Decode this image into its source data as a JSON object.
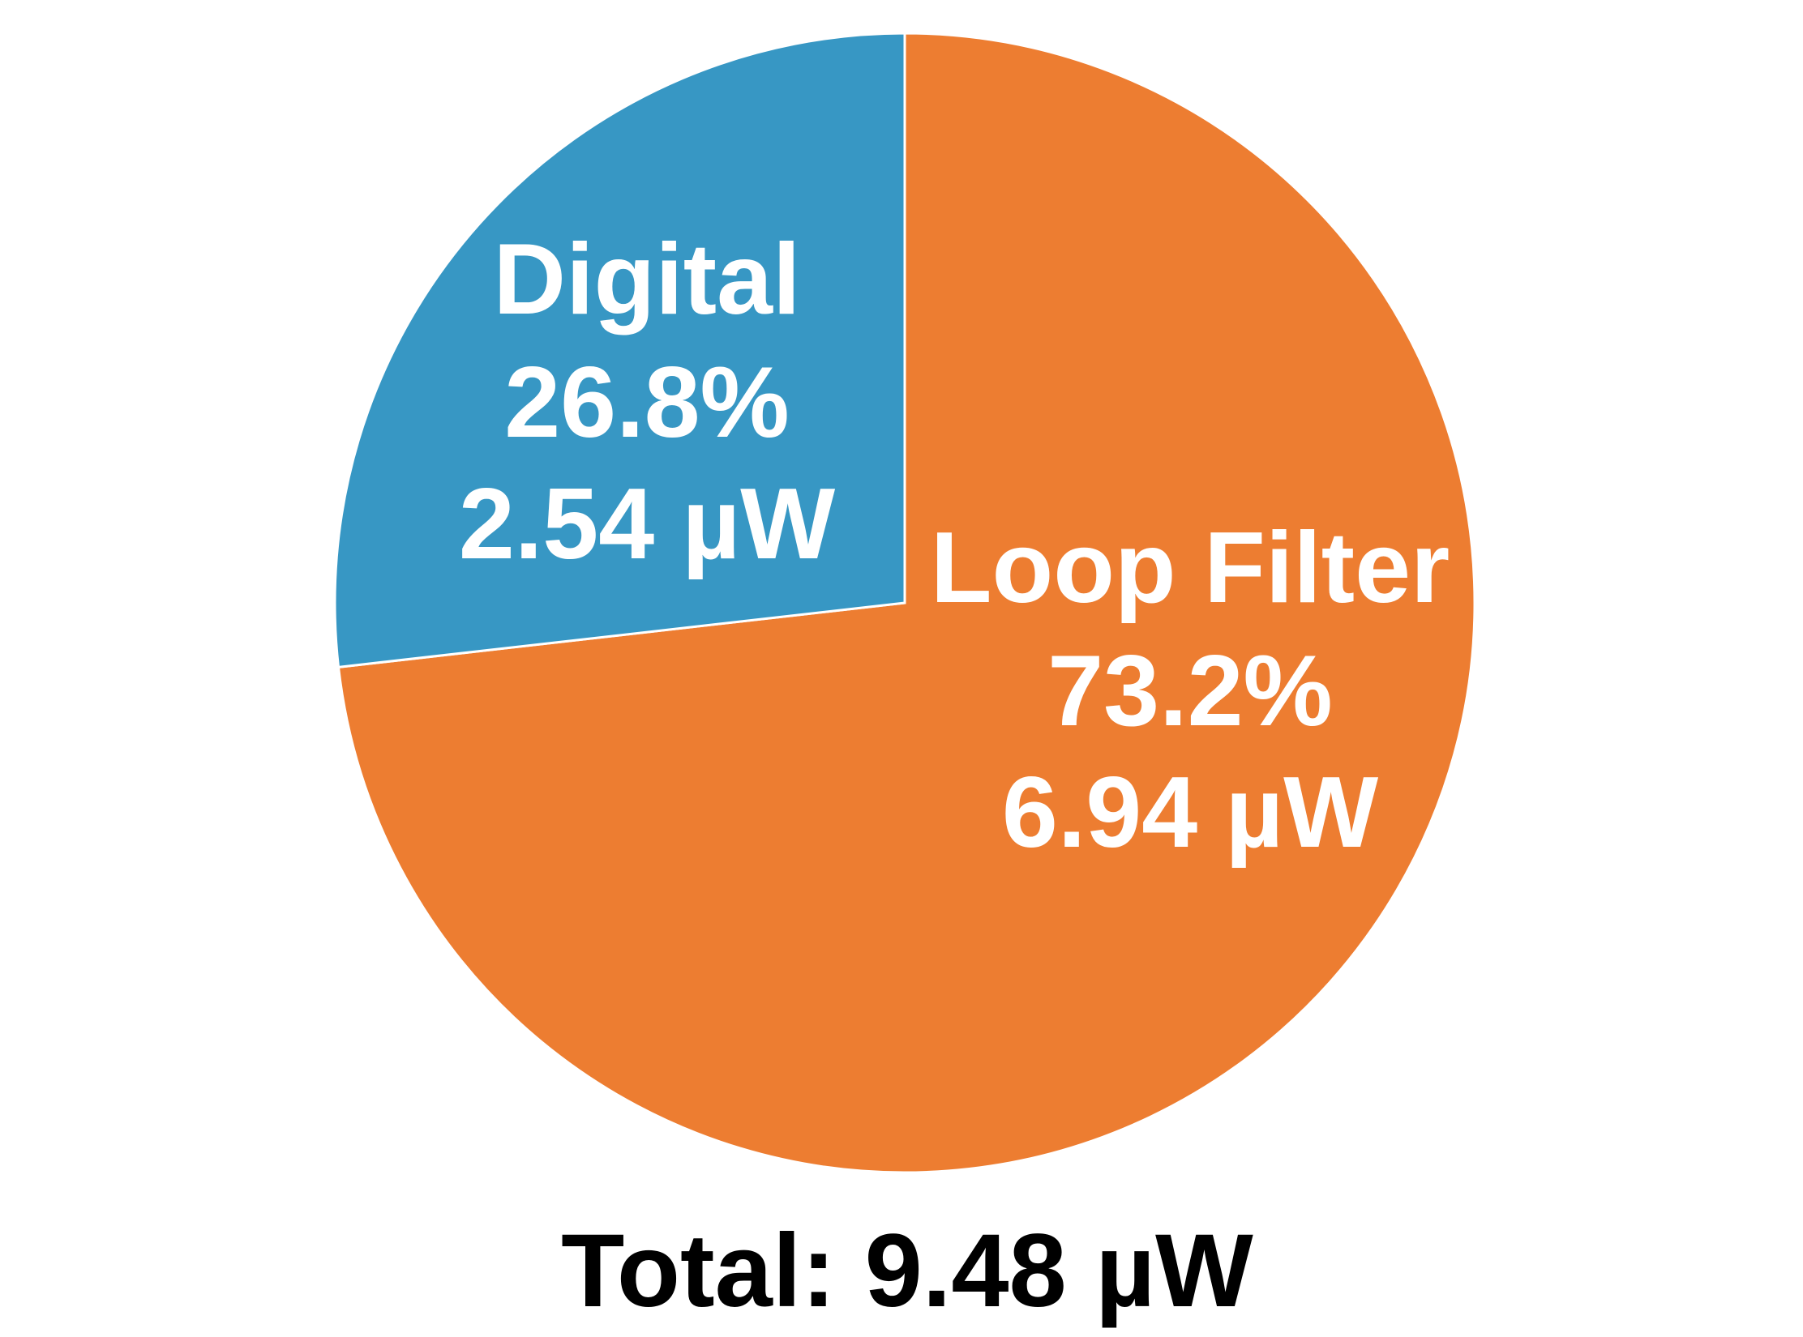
{
  "chart_data": {
    "type": "pie",
    "categories": [
      "Loop Filter",
      "Digital"
    ],
    "values": [
      73.2,
      26.8
    ],
    "value_labels": [
      "73.2%",
      "26.8%"
    ],
    "colors": [
      "#ED7D31",
      "#3797C4"
    ],
    "power": {
      "values": [
        6.94,
        2.54
      ],
      "value_labels": [
        "6.94 µW",
        "2.54 µW"
      ]
    },
    "total_label": "Total: 9.48 µW"
  }
}
